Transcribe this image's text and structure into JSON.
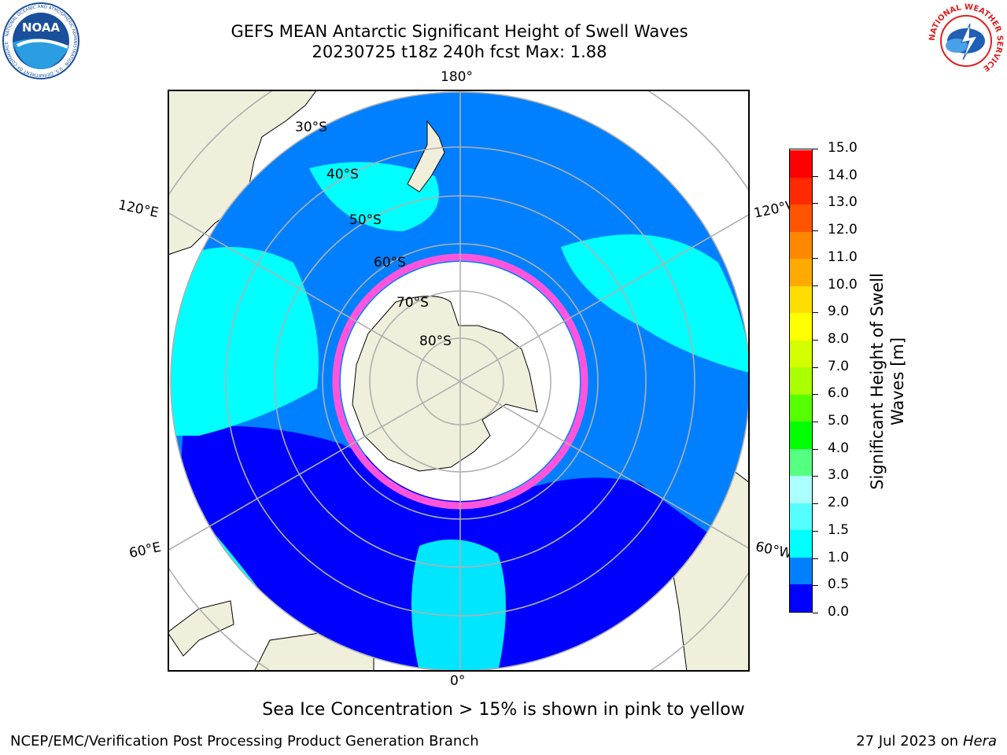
{
  "title": {
    "line1": "GEFS MEAN Antarctic Significant Height of Swell Waves",
    "line2": "20230725 t18z 240h fcst   Max: 1.88"
  },
  "logos": {
    "noaa": {
      "text": "NOAA",
      "ring_text": "NATIONAL OCEANIC AND ATMOSPHERIC ADMINISTRATION · U.S. DEPARTMENT OF COMMERCE"
    },
    "nws": {
      "ring_text": "NATIONAL WEATHER SERVICE"
    }
  },
  "map": {
    "longitude_labels": [
      "180°",
      "0°",
      "120°E",
      "120°W",
      "60°E",
      "60°W"
    ],
    "latitude_labels": [
      "30°S",
      "40°S",
      "50°S",
      "60°S",
      "70°S",
      "80°S"
    ],
    "colors": {
      "land": "#efefdc",
      "ocean_0_0.5": "#0000ff",
      "ocean_0.5_1": "#0080ff",
      "ocean_1_1.5": "#00ffff",
      "ice_free_center": "#ffffff",
      "ice_edge": "#ff55dd"
    }
  },
  "colorbar": {
    "title_line1": "Significant Height of Swell",
    "title_line2": "Waves [m]",
    "tick_labels": [
      "0.0",
      "0.5",
      "1.0",
      "1.5",
      "2.0",
      "3.0",
      "4.0",
      "5.0",
      "6.0",
      "7.0",
      "8.0",
      "9.0",
      "10.0",
      "11.0",
      "12.0",
      "13.0",
      "14.0",
      "15.0"
    ],
    "colors": [
      "#0000ff",
      "#0080ff",
      "#00ffff",
      "#55ffff",
      "#aaffff",
      "#55ff80",
      "#00ff00",
      "#55ff00",
      "#aaff00",
      "#d4ff00",
      "#ffff00",
      "#ffdd00",
      "#ffaa00",
      "#ff8800",
      "#ff5500",
      "#ff2a00",
      "#ff0000"
    ]
  },
  "footnote": "Sea Ice Concentration > 15% is shown in pink to yellow",
  "credit_left": "NCEP/EMC/Verification Post Processing Product Generation Branch",
  "credit_right_prefix": "27 Jul 2023 on",
  "credit_right_host": "Hera"
}
